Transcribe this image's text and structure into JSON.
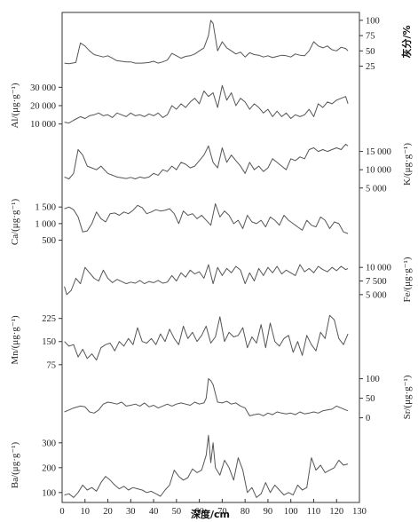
{
  "chart_data": {
    "type": "line",
    "xlabel": "深度/cm",
    "xlim": [
      0,
      130
    ],
    "xticks": [
      "0",
      "10",
      "20",
      "30",
      "40",
      "50",
      "60",
      "70",
      "80",
      "90",
      "100",
      "110",
      "120",
      "130"
    ],
    "panels": [
      {
        "key": "ash",
        "side": "right",
        "ylabel": "灰分/%",
        "ylim": [
          20,
          110
        ],
        "ticks": [
          25,
          50,
          75,
          100
        ],
        "tick_labels": [
          "25",
          "50",
          "75",
          "100"
        ],
        "x": [
          1,
          3,
          6,
          8,
          10,
          12,
          14,
          16,
          18,
          20,
          22,
          24,
          26,
          28,
          30,
          32,
          35,
          38,
          40,
          42,
          44,
          46,
          48,
          50,
          52,
          54,
          56,
          58,
          60,
          62,
          64,
          65,
          66,
          68,
          70,
          72,
          74,
          76,
          78,
          80,
          82,
          84,
          86,
          88,
          90,
          92,
          94,
          96,
          98,
          100,
          102,
          104,
          106,
          108,
          110,
          112,
          114,
          116,
          118,
          120,
          122,
          124,
          125
        ],
        "values": [
          30,
          29,
          31,
          63,
          58,
          50,
          44,
          42,
          40,
          42,
          38,
          34,
          33,
          32,
          32,
          30,
          30,
          31,
          33,
          30,
          32,
          35,
          46,
          42,
          38,
          41,
          42,
          45,
          50,
          55,
          75,
          100,
          95,
          50,
          65,
          55,
          50,
          45,
          48,
          40,
          47,
          44,
          43,
          40,
          42,
          39,
          41,
          43,
          42,
          40,
          45,
          43,
          42,
          50,
          65,
          58,
          55,
          58,
          52,
          50,
          56,
          54,
          50
        ]
      },
      {
        "key": "al",
        "side": "left",
        "ylabel": "Al/(μg·g⁻¹)",
        "ylim": [
          5000,
          35000
        ],
        "ticks": [
          10000,
          20000,
          30000
        ],
        "tick_labels": [
          "10 000",
          "20 000",
          "30 000"
        ],
        "x": [
          1,
          3,
          5,
          8,
          10,
          12,
          14,
          16,
          18,
          20,
          22,
          24,
          26,
          28,
          30,
          32,
          34,
          36,
          38,
          40,
          42,
          44,
          46,
          48,
          50,
          52,
          54,
          56,
          58,
          60,
          62,
          64,
          66,
          68,
          70,
          72,
          74,
          76,
          78,
          80,
          82,
          84,
          86,
          88,
          90,
          92,
          94,
          96,
          98,
          100,
          102,
          104,
          106,
          108,
          110,
          112,
          114,
          116,
          118,
          120,
          122,
          124,
          125
        ],
        "values": [
          11000,
          10500,
          12000,
          14000,
          13000,
          14500,
          15000,
          16000,
          14500,
          15000,
          13500,
          16000,
          15000,
          14000,
          16000,
          14500,
          15000,
          14000,
          15500,
          14500,
          16000,
          13500,
          15000,
          20000,
          18000,
          21000,
          19000,
          22000,
          24000,
          21000,
          28000,
          25000,
          27000,
          19000,
          31000,
          23000,
          27000,
          20000,
          24000,
          22000,
          18000,
          21000,
          19000,
          16000,
          18000,
          14000,
          17000,
          14000,
          16000,
          13000,
          15000,
          14000,
          15000,
          18000,
          14000,
          21000,
          19000,
          22000,
          21000,
          23000,
          24000,
          25000,
          21000
        ]
      },
      {
        "key": "k",
        "side": "right",
        "ylabel": "K/(μg·g⁻¹)",
        "ylim": [
          3000,
          20000
        ],
        "ticks": [
          5000,
          10000,
          15000
        ],
        "tick_labels": [
          "5 000",
          "10 000",
          "15 000"
        ],
        "x": [
          1,
          3,
          5,
          7,
          9,
          11,
          13,
          15,
          17,
          20,
          22,
          24,
          26,
          28,
          30,
          32,
          34,
          36,
          38,
          40,
          42,
          44,
          46,
          48,
          50,
          52,
          54,
          56,
          58,
          60,
          62,
          64,
          66,
          68,
          70,
          72,
          74,
          76,
          78,
          80,
          82,
          84,
          86,
          88,
          90,
          92,
          94,
          96,
          98,
          100,
          102,
          104,
          106,
          108,
          110,
          112,
          114,
          116,
          118,
          120,
          122,
          124,
          125
        ],
        "values": [
          8000,
          7500,
          9000,
          15500,
          14000,
          11000,
          10500,
          10000,
          11000,
          9000,
          8500,
          8000,
          7800,
          7600,
          7900,
          7500,
          8000,
          7700,
          8000,
          9000,
          8500,
          10000,
          9500,
          11000,
          10000,
          12000,
          11500,
          10500,
          11000,
          12500,
          14000,
          16500,
          12000,
          10500,
          16000,
          12000,
          14000,
          12500,
          11000,
          9000,
          12000,
          10000,
          11000,
          9500,
          10500,
          13000,
          12000,
          11000,
          10000,
          13000,
          12500,
          13500,
          13000,
          15500,
          16000,
          15000,
          15500,
          15000,
          15500,
          16000,
          15500,
          17000,
          16500
        ]
      },
      {
        "key": "ca",
        "side": "left",
        "ylabel": "Ca/(μg·g⁻¹)",
        "ylim": [
          300,
          1800
        ],
        "ticks": [
          500,
          1000,
          1500
        ],
        "tick_labels": [
          "500",
          "1 000",
          "1 500"
        ],
        "x": [
          1,
          3,
          5,
          7,
          9,
          11,
          13,
          15,
          17,
          19,
          21,
          23,
          25,
          27,
          29,
          31,
          33,
          35,
          37,
          39,
          41,
          43,
          45,
          47,
          49,
          51,
          53,
          55,
          57,
          59,
          61,
          63,
          65,
          67,
          69,
          71,
          73,
          75,
          77,
          79,
          81,
          83,
          85,
          87,
          89,
          91,
          93,
          95,
          97,
          99,
          101,
          103,
          105,
          107,
          109,
          111,
          113,
          115,
          117,
          119,
          121,
          123,
          125
        ],
        "values": [
          1450,
          1500,
          1420,
          1200,
          750,
          780,
          1000,
          1350,
          1150,
          1050,
          1300,
          1320,
          1250,
          1350,
          1300,
          1400,
          1550,
          1480,
          1300,
          1350,
          1420,
          1380,
          1400,
          1450,
          1300,
          1000,
          1380,
          1250,
          1300,
          1150,
          1250,
          1100,
          950,
          1600,
          1200,
          1380,
          1250,
          1000,
          1100,
          850,
          1250,
          1050,
          1000,
          1100,
          900,
          1200,
          1100,
          950,
          1250,
          1100,
          1000,
          900,
          800,
          1100,
          950,
          900,
          1200,
          1100,
          850,
          1050,
          1000,
          750,
          700
        ]
      },
      {
        "key": "fe",
        "side": "right",
        "ylabel": "Fe/(μg·g⁻¹)",
        "ylim": [
          4000,
          11500
        ],
        "ticks": [
          5000,
          7500,
          10000
        ],
        "tick_labels": [
          "5 000",
          "7 500",
          "10 000"
        ],
        "x": [
          1,
          2,
          4,
          6,
          8,
          10,
          12,
          14,
          16,
          18,
          20,
          22,
          24,
          26,
          28,
          30,
          32,
          34,
          36,
          38,
          40,
          42,
          44,
          46,
          48,
          50,
          52,
          54,
          56,
          58,
          60,
          62,
          64,
          66,
          68,
          70,
          72,
          74,
          76,
          78,
          80,
          82,
          84,
          86,
          88,
          90,
          92,
          94,
          96,
          98,
          100,
          102,
          104,
          106,
          108,
          110,
          112,
          114,
          116,
          118,
          120,
          122,
          124,
          125
        ],
        "values": [
          6500,
          5000,
          5800,
          8000,
          7000,
          10000,
          9000,
          8000,
          7500,
          9500,
          8000,
          7200,
          7800,
          7400,
          7000,
          7300,
          7100,
          7600,
          7000,
          7400,
          7200,
          7600,
          7100,
          7300,
          8500,
          7500,
          9000,
          8200,
          9500,
          8800,
          9200,
          8000,
          10500,
          7000,
          10000,
          8500,
          9800,
          9000,
          10200,
          9500,
          7000,
          9000,
          7500,
          9800,
          8500,
          10000,
          9000,
          10200,
          8800,
          9500,
          9000,
          8500,
          10500,
          9200,
          9800,
          9000,
          10200,
          9600,
          9200,
          10000,
          9400,
          10200,
          9600,
          9800
        ]
      },
      {
        "key": "mn",
        "side": "left",
        "ylabel": "Mn/(μg·g⁻¹)",
        "ylim": [
          60,
          250
        ],
        "ticks": [
          75,
          150,
          225
        ],
        "tick_labels": [
          "75",
          "150",
          "225"
        ],
        "x": [
          1,
          3,
          5,
          7,
          9,
          11,
          13,
          15,
          17,
          19,
          21,
          23,
          25,
          27,
          29,
          31,
          33,
          35,
          37,
          39,
          41,
          43,
          45,
          47,
          49,
          51,
          53,
          55,
          57,
          59,
          61,
          63,
          65,
          67,
          69,
          71,
          73,
          75,
          77,
          79,
          81,
          83,
          85,
          87,
          89,
          91,
          93,
          95,
          97,
          99,
          101,
          103,
          105,
          107,
          109,
          111,
          113,
          115,
          117,
          119,
          121,
          123,
          125
        ],
        "values": [
          150,
          135,
          140,
          100,
          125,
          95,
          110,
          90,
          130,
          140,
          145,
          120,
          150,
          135,
          160,
          140,
          195,
          150,
          145,
          160,
          140,
          175,
          150,
          190,
          160,
          140,
          200,
          160,
          180,
          150,
          170,
          200,
          145,
          165,
          230,
          150,
          180,
          165,
          170,
          195,
          130,
          165,
          145,
          205,
          130,
          210,
          150,
          135,
          160,
          170,
          115,
          150,
          105,
          170,
          140,
          120,
          180,
          160,
          235,
          220,
          160,
          140,
          175
        ]
      },
      {
        "key": "sr",
        "side": "right",
        "ylabel": "Sr/(μg·g⁻¹)",
        "ylim": [
          -10,
          115
        ],
        "ticks": [
          0,
          50,
          100
        ],
        "tick_labels": [
          "0",
          "50",
          "100"
        ],
        "x": [
          1,
          3,
          5,
          8,
          10,
          12,
          14,
          16,
          18,
          20,
          22,
          24,
          26,
          28,
          30,
          32,
          34,
          36,
          38,
          40,
          42,
          44,
          46,
          48,
          50,
          52,
          54,
          56,
          58,
          60,
          62,
          63,
          64,
          65,
          66,
          68,
          70,
          72,
          74,
          76,
          78,
          80,
          82,
          84,
          86,
          88,
          90,
          92,
          94,
          96,
          98,
          100,
          102,
          104,
          106,
          108,
          110,
          112,
          114,
          116,
          118,
          120,
          122,
          124,
          125
        ],
        "values": [
          15,
          20,
          25,
          30,
          28,
          15,
          12,
          20,
          35,
          40,
          38,
          35,
          40,
          30,
          32,
          35,
          30,
          38,
          28,
          32,
          25,
          30,
          35,
          30,
          35,
          38,
          35,
          32,
          40,
          35,
          38,
          50,
          100,
          95,
          85,
          40,
          38,
          42,
          35,
          38,
          30,
          25,
          5,
          8,
          10,
          5,
          12,
          8,
          15,
          12,
          10,
          12,
          8,
          15,
          10,
          12,
          15,
          12,
          18,
          20,
          22,
          30,
          25,
          20,
          18
        ]
      },
      {
        "key": "ba",
        "side": "left",
        "ylabel": "Ba/(μg·g⁻¹)",
        "ylim": [
          60,
          360
        ],
        "ticks": [
          100,
          200,
          300
        ],
        "tick_labels": [
          "100",
          "200",
          "300"
        ],
        "x": [
          1,
          3,
          5,
          7,
          9,
          11,
          13,
          15,
          17,
          19,
          21,
          23,
          25,
          27,
          29,
          31,
          33,
          35,
          37,
          39,
          41,
          43,
          45,
          47,
          49,
          51,
          53,
          55,
          57,
          59,
          61,
          63,
          64,
          65,
          66,
          67,
          69,
          71,
          73,
          75,
          77,
          79,
          81,
          83,
          85,
          87,
          89,
          91,
          93,
          95,
          97,
          99,
          101,
          103,
          105,
          107,
          109,
          111,
          113,
          115,
          117,
          119,
          121,
          123,
          125
        ],
        "values": [
          90,
          95,
          80,
          100,
          130,
          110,
          120,
          105,
          140,
          165,
          150,
          130,
          115,
          125,
          110,
          120,
          115,
          110,
          100,
          105,
          95,
          85,
          110,
          130,
          190,
          165,
          150,
          160,
          195,
          180,
          190,
          250,
          330,
          220,
          300,
          200,
          170,
          230,
          200,
          150,
          240,
          190,
          100,
          120,
          80,
          95,
          140,
          100,
          130,
          110,
          90,
          100,
          90,
          130,
          110,
          120,
          240,
          190,
          210,
          180,
          190,
          200,
          230,
          210,
          215
        ]
      }
    ]
  }
}
